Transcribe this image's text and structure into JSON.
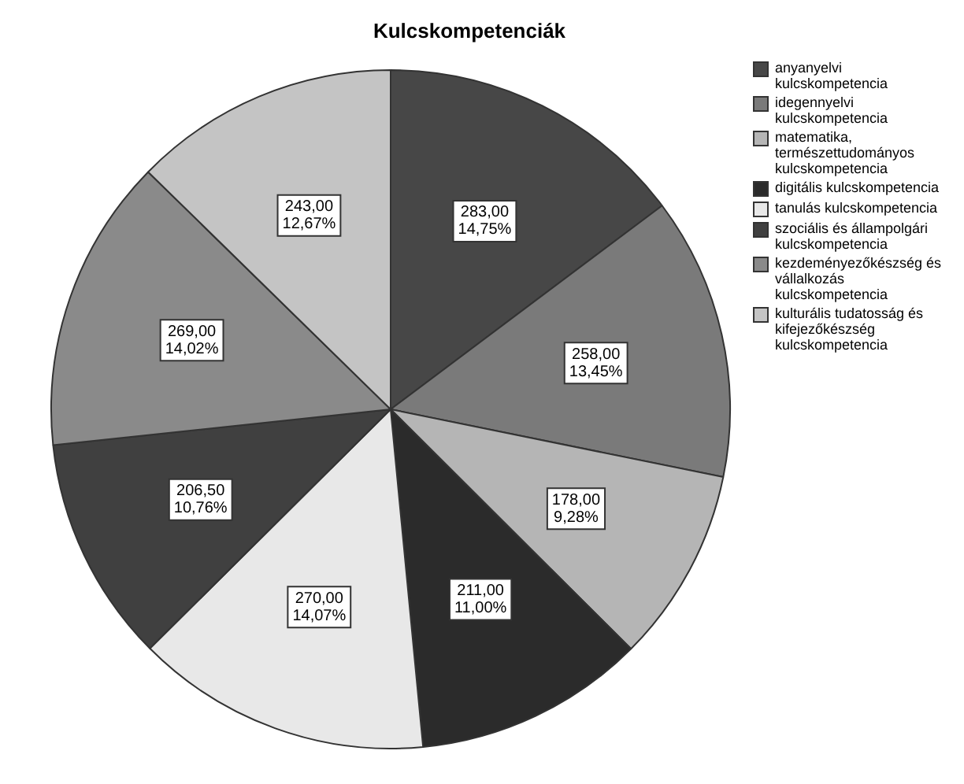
{
  "chart_data": {
    "type": "pie",
    "title": "Kulcskompetenciák",
    "categories": [
      "anyanyelvi kulcskompetencia",
      "idegennyelvi kulcskompetencia",
      "matematika, természettudományos kulcskompetencia",
      "digitális kulcskompetencia",
      "tanulás kulcskompetencia",
      "szociális és állampolgári kulcskompetencia",
      "kezdeményezőkészség és vállalkozás kulcskompetencia",
      "kulturális tudatosság és kifejezőkészség kulcskompetencia"
    ],
    "values": [
      283,
      258,
      178,
      211,
      270,
      206.5,
      269,
      243
    ],
    "colors": [
      "#474747",
      "#7a7a7a",
      "#b5b5b5",
      "#2b2b2b",
      "#e8e8e8",
      "#404040",
      "#8a8a8a",
      "#c4c4c4"
    ],
    "value_labels": [
      "283,00\n14,75%",
      "258,00\n13,45%",
      "178,00\n9,28%",
      "211,00\n11,00%",
      "270,00\n14,07%",
      "206,50\n10,76%",
      "269,00\n14,02%",
      "243,00\n12,67%"
    ],
    "legend": "right"
  }
}
